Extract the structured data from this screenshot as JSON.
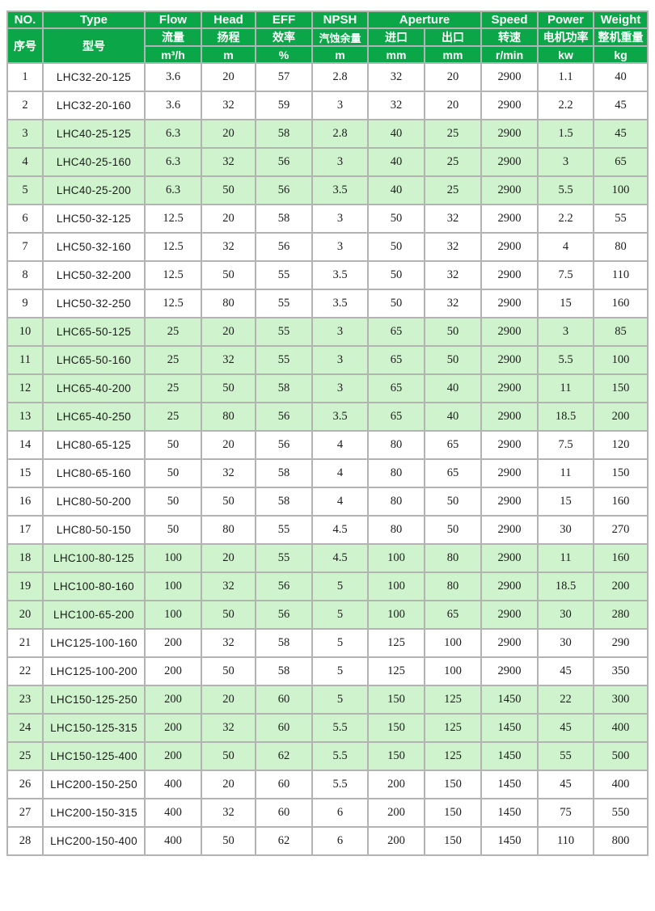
{
  "colors": {
    "header_green": "#0ba647",
    "row_pale_green": "#cff3cd",
    "grid_gray": "#b3b3b3",
    "header_text": "#ffffff",
    "body_text": "#1c1c1c"
  },
  "table": {
    "header": {
      "row1": {
        "no": "NO.",
        "type": "Type",
        "flow": "Flow",
        "head": "Head",
        "eff": "EFF",
        "npsh": "NPSH",
        "aperture": "Aperture",
        "speed": "Speed",
        "power": "Power",
        "weight": "Weight"
      },
      "row2": {
        "no": "序号",
        "type": "型号",
        "flow": "流量",
        "head": "扬程",
        "eff": "效率",
        "npsh": "汽蚀余量",
        "inlet": "进口",
        "outlet": "出口",
        "speed": "转速",
        "power": "电机功率",
        "weight": "整机重量"
      },
      "row3": {
        "flow": "m³/h",
        "head": "m",
        "eff": "%",
        "npsh": "m",
        "inlet": "mm",
        "outlet": "mm",
        "speed": "r/min",
        "power": "kw",
        "weight": "kg"
      }
    },
    "rows": [
      {
        "no": "1",
        "type": "LHC32-20-125",
        "flow": "3.6",
        "head": "20",
        "eff": "57",
        "npsh": "2.8",
        "inlet": "32",
        "outlet": "20",
        "speed": "2900",
        "power": "1.1",
        "weight": "40",
        "shaded": false
      },
      {
        "no": "2",
        "type": "LHC32-20-160",
        "flow": "3.6",
        "head": "32",
        "eff": "59",
        "npsh": "3",
        "inlet": "32",
        "outlet": "20",
        "speed": "2900",
        "power": "2.2",
        "weight": "45",
        "shaded": false
      },
      {
        "no": "3",
        "type": "LHC40-25-125",
        "flow": "6.3",
        "head": "20",
        "eff": "58",
        "npsh": "2.8",
        "inlet": "40",
        "outlet": "25",
        "speed": "2900",
        "power": "1.5",
        "weight": "45",
        "shaded": true
      },
      {
        "no": "4",
        "type": "LHC40-25-160",
        "flow": "6.3",
        "head": "32",
        "eff": "56",
        "npsh": "3",
        "inlet": "40",
        "outlet": "25",
        "speed": "2900",
        "power": "3",
        "weight": "65",
        "shaded": true
      },
      {
        "no": "5",
        "type": "LHC40-25-200",
        "flow": "6.3",
        "head": "50",
        "eff": "56",
        "npsh": "3.5",
        "inlet": "40",
        "outlet": "25",
        "speed": "2900",
        "power": "5.5",
        "weight": "100",
        "shaded": true
      },
      {
        "no": "6",
        "type": "LHC50-32-125",
        "flow": "12.5",
        "head": "20",
        "eff": "58",
        "npsh": "3",
        "inlet": "50",
        "outlet": "32",
        "speed": "2900",
        "power": "2.2",
        "weight": "55",
        "shaded": false
      },
      {
        "no": "7",
        "type": "LHC50-32-160",
        "flow": "12.5",
        "head": "32",
        "eff": "56",
        "npsh": "3",
        "inlet": "50",
        "outlet": "32",
        "speed": "2900",
        "power": "4",
        "weight": "80",
        "shaded": false
      },
      {
        "no": "8",
        "type": "LHC50-32-200",
        "flow": "12.5",
        "head": "50",
        "eff": "55",
        "npsh": "3.5",
        "inlet": "50",
        "outlet": "32",
        "speed": "2900",
        "power": "7.5",
        "weight": "110",
        "shaded": false
      },
      {
        "no": "9",
        "type": "LHC50-32-250",
        "flow": "12.5",
        "head": "80",
        "eff": "55",
        "npsh": "3.5",
        "inlet": "50",
        "outlet": "32",
        "speed": "2900",
        "power": "15",
        "weight": "160",
        "shaded": false
      },
      {
        "no": "10",
        "type": "LHC65-50-125",
        "flow": "25",
        "head": "20",
        "eff": "55",
        "npsh": "3",
        "inlet": "65",
        "outlet": "50",
        "speed": "2900",
        "power": "3",
        "weight": "85",
        "shaded": true
      },
      {
        "no": "11",
        "type": "LHC65-50-160",
        "flow": "25",
        "head": "32",
        "eff": "55",
        "npsh": "3",
        "inlet": "65",
        "outlet": "50",
        "speed": "2900",
        "power": "5.5",
        "weight": "100",
        "shaded": true
      },
      {
        "no": "12",
        "type": "LHC65-40-200",
        "flow": "25",
        "head": "50",
        "eff": "58",
        "npsh": "3",
        "inlet": "65",
        "outlet": "40",
        "speed": "2900",
        "power": "11",
        "weight": "150",
        "shaded": true
      },
      {
        "no": "13",
        "type": "LHC65-40-250",
        "flow": "25",
        "head": "80",
        "eff": "56",
        "npsh": "3.5",
        "inlet": "65",
        "outlet": "40",
        "speed": "2900",
        "power": "18.5",
        "weight": "200",
        "shaded": true
      },
      {
        "no": "14",
        "type": "LHC80-65-125",
        "flow": "50",
        "head": "20",
        "eff": "56",
        "npsh": "4",
        "inlet": "80",
        "outlet": "65",
        "speed": "2900",
        "power": "7.5",
        "weight": "120",
        "shaded": false
      },
      {
        "no": "15",
        "type": "LHC80-65-160",
        "flow": "50",
        "head": "32",
        "eff": "58",
        "npsh": "4",
        "inlet": "80",
        "outlet": "65",
        "speed": "2900",
        "power": "11",
        "weight": "150",
        "shaded": false
      },
      {
        "no": "16",
        "type": "LHC80-50-200",
        "flow": "50",
        "head": "50",
        "eff": "58",
        "npsh": "4",
        "inlet": "80",
        "outlet": "50",
        "speed": "2900",
        "power": "15",
        "weight": "160",
        "shaded": false
      },
      {
        "no": "17",
        "type": "LHC80-50-150",
        "flow": "50",
        "head": "80",
        "eff": "55",
        "npsh": "4.5",
        "inlet": "80",
        "outlet": "50",
        "speed": "2900",
        "power": "30",
        "weight": "270",
        "shaded": false
      },
      {
        "no": "18",
        "type": "LHC100-80-125",
        "flow": "100",
        "head": "20",
        "eff": "55",
        "npsh": "4.5",
        "inlet": "100",
        "outlet": "80",
        "speed": "2900",
        "power": "11",
        "weight": "160",
        "shaded": true
      },
      {
        "no": "19",
        "type": "LHC100-80-160",
        "flow": "100",
        "head": "32",
        "eff": "56",
        "npsh": "5",
        "inlet": "100",
        "outlet": "80",
        "speed": "2900",
        "power": "18.5",
        "weight": "200",
        "shaded": true
      },
      {
        "no": "20",
        "type": "LHC100-65-200",
        "flow": "100",
        "head": "50",
        "eff": "56",
        "npsh": "5",
        "inlet": "100",
        "outlet": "65",
        "speed": "2900",
        "power": "30",
        "weight": "280",
        "shaded": true
      },
      {
        "no": "21",
        "type": "LHC125-100-160",
        "flow": "200",
        "head": "32",
        "eff": "58",
        "npsh": "5",
        "inlet": "125",
        "outlet": "100",
        "speed": "2900",
        "power": "30",
        "weight": "290",
        "shaded": false
      },
      {
        "no": "22",
        "type": "LHC125-100-200",
        "flow": "200",
        "head": "50",
        "eff": "58",
        "npsh": "5",
        "inlet": "125",
        "outlet": "100",
        "speed": "2900",
        "power": "45",
        "weight": "350",
        "shaded": false
      },
      {
        "no": "23",
        "type": "LHC150-125-250",
        "flow": "200",
        "head": "20",
        "eff": "60",
        "npsh": "5",
        "inlet": "150",
        "outlet": "125",
        "speed": "1450",
        "power": "22",
        "weight": "300",
        "shaded": true
      },
      {
        "no": "24",
        "type": "LHC150-125-315",
        "flow": "200",
        "head": "32",
        "eff": "60",
        "npsh": "5.5",
        "inlet": "150",
        "outlet": "125",
        "speed": "1450",
        "power": "45",
        "weight": "400",
        "shaded": true
      },
      {
        "no": "25",
        "type": "LHC150-125-400",
        "flow": "200",
        "head": "50",
        "eff": "62",
        "npsh": "5.5",
        "inlet": "150",
        "outlet": "125",
        "speed": "1450",
        "power": "55",
        "weight": "500",
        "shaded": true
      },
      {
        "no": "26",
        "type": "LHC200-150-250",
        "flow": "400",
        "head": "20",
        "eff": "60",
        "npsh": "5.5",
        "inlet": "200",
        "outlet": "150",
        "speed": "1450",
        "power": "45",
        "weight": "400",
        "shaded": false
      },
      {
        "no": "27",
        "type": "LHC200-150-315",
        "flow": "400",
        "head": "32",
        "eff": "60",
        "npsh": "6",
        "inlet": "200",
        "outlet": "150",
        "speed": "1450",
        "power": "75",
        "weight": "550",
        "shaded": false
      },
      {
        "no": "28",
        "type": "LHC200-150-400",
        "flow": "400",
        "head": "50",
        "eff": "62",
        "npsh": "6",
        "inlet": "200",
        "outlet": "150",
        "speed": "1450",
        "power": "110",
        "weight": "800",
        "shaded": false
      }
    ]
  }
}
